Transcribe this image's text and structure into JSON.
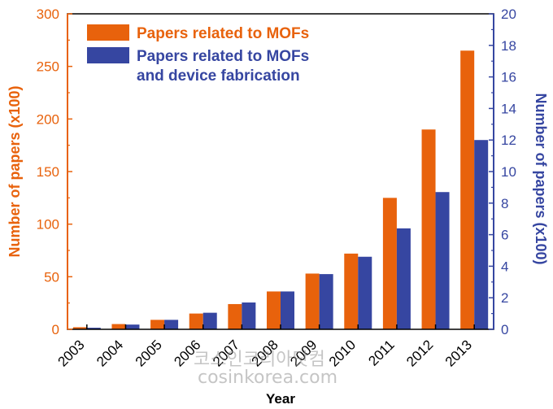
{
  "chart_data": {
    "type": "bar",
    "categories": [
      "2003",
      "2004",
      "2005",
      "2006",
      "2007",
      "2008",
      "2009",
      "2010",
      "2011",
      "2012",
      "2013"
    ],
    "series": [
      {
        "name": "Papers related to MOFs",
        "axis": "left",
        "color": "#E8620C",
        "values": [
          2,
          5,
          9,
          15,
          24,
          36,
          53,
          72,
          125,
          190,
          265
        ]
      },
      {
        "name": "Papers related to MOFs\nand device fabrication",
        "axis": "right",
        "color": "#3646A1",
        "values": [
          0.1,
          0.3,
          0.6,
          1.05,
          1.7,
          2.4,
          3.5,
          4.6,
          6.4,
          8.7,
          12.0
        ]
      }
    ],
    "legend_lines": {
      "s1": [
        "Papers related to MOFs"
      ],
      "s2": [
        "Papers related to MOFs",
        "and device fabrication"
      ]
    },
    "xlabel": "Year",
    "ylabel_left": "Number of papers (x100)",
    "ylabel_right": "Number of papers (x100)",
    "ylim_left": [
      0,
      300
    ],
    "ylim_right": [
      0,
      20
    ],
    "yticks_left": [
      0,
      50,
      100,
      150,
      200,
      250,
      300
    ],
    "yticks_right": [
      0,
      2,
      4,
      6,
      8,
      10,
      12,
      14,
      16,
      18,
      20
    ],
    "legend_position": "top-left",
    "grid": false
  },
  "watermark": {
    "line1": "코스인코리아닷컴",
    "line2": "cosinkorea.com"
  },
  "colors": {
    "left_axis": "#E8620C",
    "right_axis": "#3646A1",
    "frame": "#000000"
  }
}
